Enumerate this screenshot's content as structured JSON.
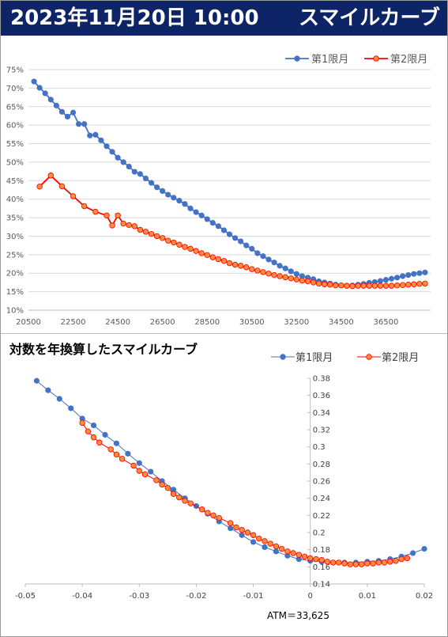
{
  "header": {
    "datetime": "2023年11月20日 10:00",
    "title": "スマイルカーブ"
  },
  "colors": {
    "header_bg": "#0d2466",
    "series1": "#4472c4",
    "series2": "#ff0000",
    "series2_fill": "#ff8c3a"
  },
  "chart_data": [
    {
      "type": "line",
      "title": "",
      "xlabel": "",
      "ylabel": "",
      "xlim": [
        20500,
        38500
      ],
      "ylim": [
        0.1,
        0.75
      ],
      "x_ticks": [
        20500,
        22500,
        24500,
        26500,
        28500,
        30500,
        32500,
        34500,
        36500
      ],
      "y_ticks": [
        "75%",
        "70%",
        "65%",
        "60%",
        "55%",
        "50%",
        "45%",
        "40%",
        "35%",
        "30%",
        "25%",
        "20%",
        "15%",
        "10%"
      ],
      "y_tick_values": [
        0.75,
        0.7,
        0.65,
        0.6,
        0.55,
        0.5,
        0.45,
        0.4,
        0.35,
        0.3,
        0.25,
        0.2,
        0.15,
        0.1
      ],
      "legend_position": "top-right",
      "grid": "horizontal",
      "series": [
        {
          "name": "第1限月",
          "x": [
            20750,
            21000,
            21250,
            21500,
            21750,
            22000,
            22250,
            22500,
            22750,
            23000,
            23250,
            23500,
            23750,
            24000,
            24250,
            24500,
            24750,
            25000,
            25250,
            25500,
            25750,
            26000,
            26250,
            26500,
            26750,
            27000,
            27250,
            27500,
            27750,
            28000,
            28250,
            28500,
            28750,
            29000,
            29250,
            29500,
            29750,
            30000,
            30250,
            30500,
            30750,
            31000,
            31250,
            31500,
            31750,
            32000,
            32250,
            32500,
            32750,
            33000,
            33250,
            33500,
            33750,
            34000,
            34250,
            34500,
            34750,
            35000,
            35250,
            35500,
            35750,
            36000,
            36250,
            36500,
            36750,
            37000,
            37250,
            37500,
            37750,
            38000,
            38250
          ],
          "y": [
            0.718,
            0.701,
            0.686,
            0.669,
            0.653,
            0.636,
            0.623,
            0.634,
            0.603,
            0.603,
            0.572,
            0.574,
            0.559,
            0.543,
            0.528,
            0.512,
            0.5,
            0.488,
            0.474,
            0.468,
            0.456,
            0.444,
            0.432,
            0.422,
            0.412,
            0.404,
            0.396,
            0.387,
            0.375,
            0.365,
            0.356,
            0.346,
            0.336,
            0.327,
            0.316,
            0.305,
            0.295,
            0.286,
            0.275,
            0.266,
            0.254,
            0.246,
            0.237,
            0.229,
            0.22,
            0.213,
            0.205,
            0.198,
            0.192,
            0.188,
            0.184,
            0.178,
            0.175,
            0.172,
            0.169,
            0.167,
            0.166,
            0.167,
            0.169,
            0.171,
            0.174,
            0.176,
            0.179,
            0.182,
            0.185,
            0.188,
            0.192,
            0.195,
            0.198,
            0.2,
            0.202
          ]
        },
        {
          "name": "第2限月",
          "x": [
            21000,
            21500,
            22000,
            22500,
            23000,
            23500,
            24000,
            24250,
            24500,
            24750,
            25000,
            25250,
            25500,
            25750,
            26000,
            26250,
            26500,
            26750,
            27000,
            27250,
            27500,
            27750,
            28000,
            28250,
            28500,
            28750,
            29000,
            29250,
            29500,
            29750,
            30000,
            30250,
            30500,
            30750,
            31000,
            31250,
            31500,
            31750,
            32000,
            32250,
            32500,
            32750,
            33000,
            33250,
            33500,
            33750,
            34000,
            34250,
            34500,
            34750,
            35000,
            35250,
            35500,
            35750,
            36000,
            36250,
            36500,
            36750,
            37000,
            37250,
            37500,
            37750,
            38000,
            38250
          ],
          "y": [
            0.434,
            0.464,
            0.435,
            0.408,
            0.381,
            0.366,
            0.356,
            0.329,
            0.356,
            0.334,
            0.33,
            0.327,
            0.317,
            0.312,
            0.306,
            0.3,
            0.295,
            0.288,
            0.283,
            0.277,
            0.271,
            0.266,
            0.26,
            0.254,
            0.249,
            0.243,
            0.238,
            0.233,
            0.227,
            0.223,
            0.22,
            0.216,
            0.211,
            0.207,
            0.203,
            0.199,
            0.195,
            0.192,
            0.189,
            0.186,
            0.183,
            0.18,
            0.178,
            0.175,
            0.172,
            0.17,
            0.169,
            0.167,
            0.167,
            0.166,
            0.165,
            0.166,
            0.166,
            0.166,
            0.166,
            0.166,
            0.166,
            0.166,
            0.167,
            0.168,
            0.169,
            0.17,
            0.171,
            0.172
          ]
        }
      ]
    },
    {
      "type": "scatter",
      "title": "対数を年換算したスマイルカーブ",
      "xlabel": "",
      "ylabel": "",
      "xlim": [
        -0.05,
        0.02
      ],
      "ylim": [
        0.14,
        0.38
      ],
      "x_ticks": [
        "-0.05",
        "-0.04",
        "-0.03",
        "-0.02",
        "-0.01",
        "0",
        "0.01",
        "0.02"
      ],
      "x_tick_values": [
        -0.05,
        -0.04,
        -0.03,
        -0.02,
        -0.01,
        0,
        0.01,
        0.02
      ],
      "y_ticks": [
        "0.38",
        "0.36",
        "0.34",
        "0.32",
        "0.3",
        "0.28",
        "0.26",
        "0.24",
        "0.22",
        "0.2",
        "0.18",
        "0.16",
        "0.14"
      ],
      "y_tick_values": [
        0.38,
        0.36,
        0.34,
        0.32,
        0.3,
        0.28,
        0.26,
        0.24,
        0.22,
        0.2,
        0.18,
        0.16,
        0.14
      ],
      "legend_position": "top-right",
      "grid": "none",
      "annotation": "ATM＝33,625",
      "series": [
        {
          "name": "第1限月",
          "x": [
            -0.048,
            -0.046,
            -0.044,
            -0.042,
            -0.04,
            -0.038,
            -0.036,
            -0.034,
            -0.032,
            -0.03,
            -0.028,
            -0.026,
            -0.024,
            -0.022,
            -0.02,
            -0.018,
            -0.016,
            -0.014,
            -0.012,
            -0.01,
            -0.008,
            -0.006,
            -0.004,
            -0.002,
            0.0,
            0.002,
            0.004,
            0.006,
            0.008,
            0.01,
            0.012,
            0.014,
            0.016,
            0.018,
            0.02
          ],
          "y": [
            0.377,
            0.366,
            0.356,
            0.345,
            0.333,
            0.325,
            0.314,
            0.304,
            0.292,
            0.281,
            0.271,
            0.26,
            0.25,
            0.24,
            0.231,
            0.222,
            0.213,
            0.205,
            0.197,
            0.189,
            0.183,
            0.178,
            0.173,
            0.169,
            0.167,
            0.166,
            0.165,
            0.165,
            0.165,
            0.166,
            0.167,
            0.169,
            0.172,
            0.176,
            0.181
          ]
        },
        {
          "name": "第2限月",
          "x": [
            -0.04,
            -0.039,
            -0.038,
            -0.037,
            -0.035,
            -0.034,
            -0.033,
            -0.031,
            -0.03,
            -0.029,
            -0.027,
            -0.026,
            -0.025,
            -0.024,
            -0.023,
            -0.022,
            -0.021,
            -0.019,
            -0.018,
            -0.017,
            -0.016,
            -0.014,
            -0.013,
            -0.012,
            -0.011,
            -0.01,
            -0.009,
            -0.008,
            -0.007,
            -0.006,
            -0.005,
            -0.004,
            -0.003,
            -0.002,
            -0.001,
            0.0,
            0.001,
            0.002,
            0.003,
            0.004,
            0.005,
            0.006,
            0.007,
            0.008,
            0.009,
            0.01,
            0.011,
            0.012,
            0.013,
            0.014,
            0.015,
            0.016,
            0.017
          ],
          "y": [
            0.328,
            0.318,
            0.311,
            0.305,
            0.297,
            0.291,
            0.286,
            0.278,
            0.272,
            0.268,
            0.261,
            0.256,
            0.252,
            0.245,
            0.241,
            0.237,
            0.234,
            0.227,
            0.223,
            0.22,
            0.217,
            0.211,
            0.206,
            0.203,
            0.2,
            0.197,
            0.193,
            0.19,
            0.187,
            0.184,
            0.181,
            0.178,
            0.176,
            0.174,
            0.172,
            0.17,
            0.169,
            0.168,
            0.166,
            0.165,
            0.165,
            0.164,
            0.163,
            0.163,
            0.163,
            0.164,
            0.164,
            0.165,
            0.165,
            0.166,
            0.167,
            0.169,
            0.17
          ]
        }
      ]
    }
  ]
}
